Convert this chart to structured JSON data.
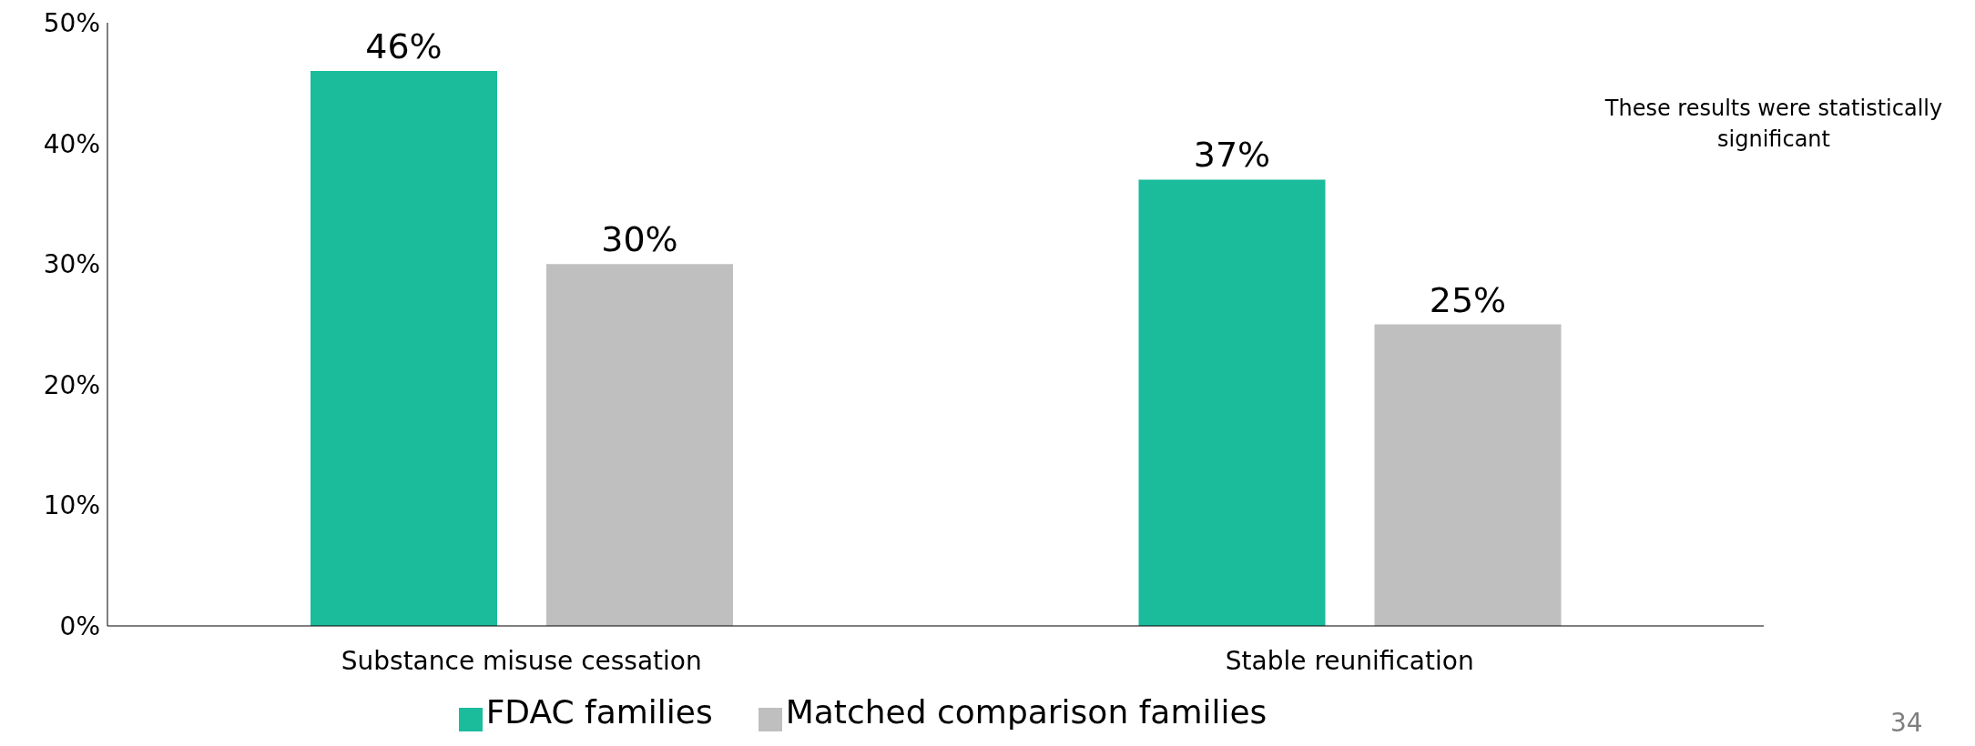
{
  "chart_data": {
    "type": "bar",
    "categories": [
      "Substance misuse cessation",
      "Stable reunification"
    ],
    "series": [
      {
        "name": "FDAC families",
        "color": "#1abc9c",
        "values": [
          46,
          37
        ],
        "value_labels": [
          "46%",
          "37%"
        ]
      },
      {
        "name": "Matched comparison families",
        "color": "#bfbfbf",
        "values": [
          30,
          25
        ],
        "value_labels": [
          "30%",
          "25%"
        ]
      }
    ],
    "ylim": [
      0,
      50
    ],
    "yticks": [
      {
        "value": 0,
        "label": "0%"
      },
      {
        "value": 10,
        "label": "10%"
      },
      {
        "value": 20,
        "label": "20%"
      },
      {
        "value": 30,
        "label": "30%"
      },
      {
        "value": 40,
        "label": "40%"
      },
      {
        "value": 50,
        "label": "50%"
      }
    ],
    "grid": false,
    "legend": "bottom",
    "annotations": [
      "These results were statistically significant",
      "34"
    ]
  }
}
